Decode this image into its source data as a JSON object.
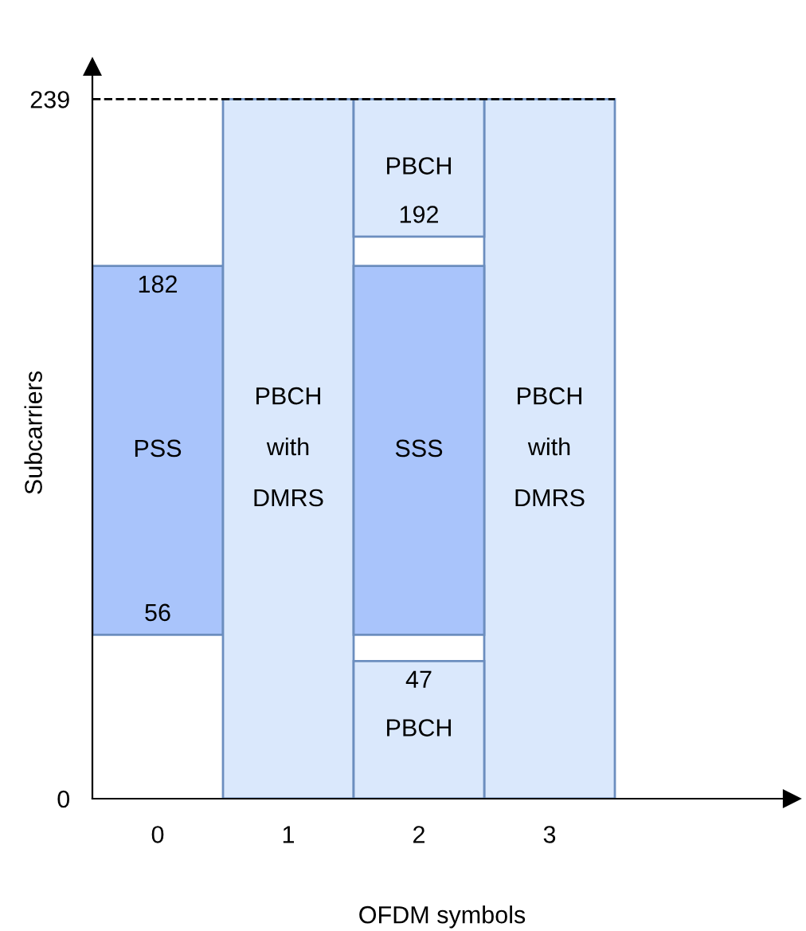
{
  "chart_data": {
    "type": "bar",
    "xlabel": "OFDM symbols",
    "ylabel": "Subcarriers",
    "categories": [
      "0",
      "1",
      "2",
      "3"
    ],
    "series": [
      {
        "name": "PSS",
        "color": "#a9c4fb",
        "values": [
          126,
          null,
          null,
          null
        ],
        "base": [
          56,
          null,
          null,
          null
        ]
      },
      {
        "name": "PBCH with DMRS",
        "color": "#dae8fc",
        "values": [
          null,
          239,
          null,
          239
        ],
        "base": [
          null,
          0,
          null,
          0
        ]
      },
      {
        "name": "SSS",
        "color": "#a9c4fb",
        "values": [
          null,
          null,
          126,
          null
        ],
        "base": [
          null,
          null,
          56,
          null
        ]
      },
      {
        "name": "PBCH",
        "color": "#dae8fc",
        "values": [
          null,
          null,
          47,
          null
        ],
        "base": [
          null,
          null,
          0,
          null
        ]
      },
      {
        "name": "PBCH",
        "color": "#dae8fc",
        "values": [
          null,
          null,
          47,
          null
        ],
        "base": [
          null,
          null,
          192,
          null
        ]
      }
    ],
    "ylim": [
      0,
      250
    ],
    "yticks": [
      0,
      239
    ],
    "grid": false,
    "legend": false,
    "ref_lines": [
      {
        "axis": "y",
        "value": 239,
        "line_style": "dashed",
        "color": "#000000"
      }
    ],
    "annotations": [
      {
        "text": "182",
        "x": "0",
        "y": 182
      },
      {
        "text": "56",
        "x": "0",
        "y": 56
      },
      {
        "text": "192",
        "x": "2",
        "y": 192
      },
      {
        "text": "47",
        "x": "2",
        "y": 47
      }
    ]
  }
}
